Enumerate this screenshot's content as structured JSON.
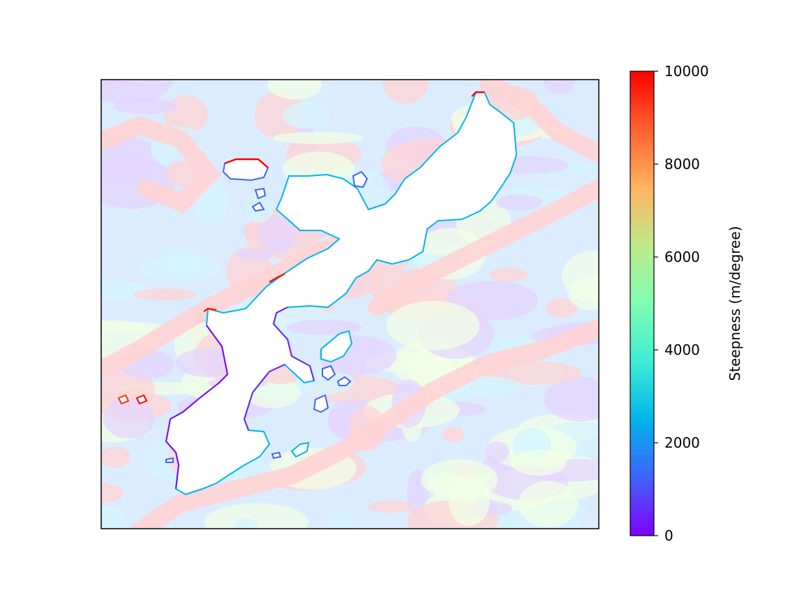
{
  "chart_data": {
    "type": "heatmap",
    "title": "",
    "xlabel": "",
    "ylabel": "",
    "colorbar": {
      "label": "Steepness (m/degree)",
      "colormap": "rainbow",
      "range": [
        0,
        10000
      ],
      "ticks": [
        0,
        2000,
        4000,
        6000,
        8000,
        10000
      ],
      "tick_labels": [
        "0",
        "2000",
        "4000",
        "6000",
        "8000",
        "10000"
      ],
      "placement": "right"
    },
    "axes_ticks_visible": false,
    "grid": false,
    "land_color": "#ffffff",
    "background_overlay_alpha": 0.25
  },
  "colors": {
    "rainbow_stops": [
      "#7f00ff",
      "#4062fa",
      "#00b5eb",
      "#40ecd4",
      "#7ffeb2",
      "#bfeb8b",
      "#ffb360",
      "#ff6130",
      "#ff0000"
    ],
    "shallow_tint": "#e6d6ff",
    "mid_tint": "#d4f4ff",
    "steep_tint": "#ffd4d4",
    "frame": "#000000"
  }
}
